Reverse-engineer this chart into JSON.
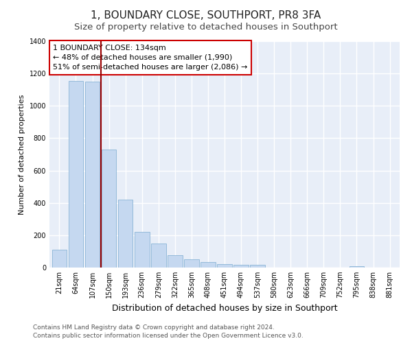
{
  "title": "1, BOUNDARY CLOSE, SOUTHPORT, PR8 3FA",
  "subtitle": "Size of property relative to detached houses in Southport",
  "xlabel": "Distribution of detached houses by size in Southport",
  "ylabel": "Number of detached properties",
  "bar_labels": [
    "21sqm",
    "64sqm",
    "107sqm",
    "150sqm",
    "193sqm",
    "236sqm",
    "279sqm",
    "322sqm",
    "365sqm",
    "408sqm",
    "451sqm",
    "494sqm",
    "537sqm",
    "580sqm",
    "623sqm",
    "666sqm",
    "709sqm",
    "752sqm",
    "795sqm",
    "838sqm",
    "881sqm"
  ],
  "bar_values": [
    110,
    1155,
    1150,
    730,
    420,
    220,
    150,
    75,
    50,
    35,
    20,
    15,
    15,
    0,
    0,
    0,
    0,
    0,
    10,
    0,
    0
  ],
  "bar_color": "#c5d8f0",
  "bar_edgecolor": "#7aaad0",
  "vline_color": "#990000",
  "annotation_line1": "1 BOUNDARY CLOSE: 134sqm",
  "annotation_line2": "← 48% of detached houses are smaller (1,990)",
  "annotation_line3": "51% of semi-detached houses are larger (2,086) →",
  "annotation_box_color": "#ffffff",
  "annotation_box_edgecolor": "#cc0000",
  "ylim": [
    0,
    1400
  ],
  "yticks": [
    0,
    200,
    400,
    600,
    800,
    1000,
    1200,
    1400
  ],
  "footer1": "Contains HM Land Registry data © Crown copyright and database right 2024.",
  "footer2": "Contains public sector information licensed under the Open Government Licence v3.0.",
  "background_color": "#e8eef8",
  "grid_color": "#ffffff",
  "title_fontsize": 11,
  "subtitle_fontsize": 9.5,
  "ylabel_fontsize": 8,
  "xlabel_fontsize": 9,
  "tick_fontsize": 7,
  "footer_fontsize": 6.5,
  "ann_fontsize": 8
}
